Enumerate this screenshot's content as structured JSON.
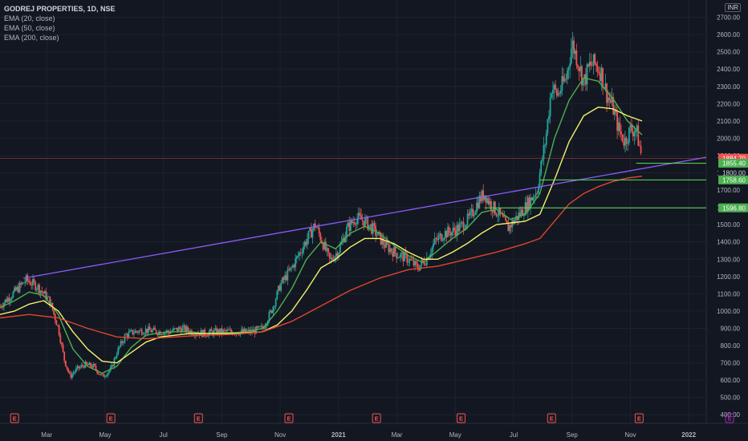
{
  "legend": {
    "title": "GODREJ PROPERTIES, 1D, NSE",
    "indicators": [
      "EMA (20, close)",
      "EMA (50, close)",
      "EMA (200, close)"
    ]
  },
  "currency": "INR",
  "colors": {
    "background": "#131722",
    "grid": "#1e222d",
    "up": "#26a69a",
    "down": "#ef5350",
    "ema20": "#4caf50",
    "ema50": "#f3f36a",
    "ema200": "#e0452b",
    "trendline": "#8a5cf6",
    "hline": "#5ee05e",
    "price_line": "#ef5350",
    "earnings": "#ef5350",
    "earnings_future": "#9c27b0"
  },
  "chart_data": {
    "type": "candlestick",
    "title": "GODREJ PROPERTIES, 1D, NSE",
    "ylim": [
      350,
      2800
    ],
    "y_ticks": [
      "400.00",
      "500.00",
      "600.00",
      "700.00",
      "800.00",
      "900.00",
      "1000.00",
      "1100.00",
      "1200.00",
      "1300.00",
      "1400.00",
      "1500.00",
      "1600.00",
      "1700.00",
      "1800.00",
      "1900.00",
      "2000.00",
      "2100.00",
      "2200.00",
      "2300.00",
      "2400.00",
      "2500.00",
      "2600.00",
      "2700.00"
    ],
    "x_ticks": [
      "Mar",
      "May",
      "Jul",
      "Sep",
      "Nov",
      "2021",
      "Mar",
      "May",
      "Jul",
      "Sep",
      "Nov",
      "2022"
    ],
    "x_tick_months": [
      1.6,
      3.6,
      5.6,
      7.6,
      9.6,
      11.6,
      13.6,
      15.6,
      17.6,
      19.6,
      21.6,
      23.6
    ],
    "x_range_months": [
      0,
      24.2
    ],
    "price_path": [
      [
        0,
        1030
      ],
      [
        0.5,
        1110
      ],
      [
        0.9,
        1180
      ],
      [
        1.3,
        1140
      ],
      [
        1.7,
        1060
      ],
      [
        2.0,
        900
      ],
      [
        2.2,
        720
      ],
      [
        2.4,
        620
      ],
      [
        2.6,
        660
      ],
      [
        2.9,
        690
      ],
      [
        3.2,
        680
      ],
      [
        3.5,
        620
      ],
      [
        3.8,
        660
      ],
      [
        4.0,
        760
      ],
      [
        4.3,
        860
      ],
      [
        4.6,
        880
      ],
      [
        5.0,
        890
      ],
      [
        5.4,
        880
      ],
      [
        5.8,
        880
      ],
      [
        6.2,
        900
      ],
      [
        6.6,
        880
      ],
      [
        7.0,
        870
      ],
      [
        7.4,
        880
      ],
      [
        7.8,
        880
      ],
      [
        8.2,
        880
      ],
      [
        8.6,
        880
      ],
      [
        9.0,
        900
      ],
      [
        9.3,
        1000
      ],
      [
        9.6,
        1150
      ],
      [
        10.0,
        1250
      ],
      [
        10.4,
        1380
      ],
      [
        10.8,
        1500
      ],
      [
        11.0,
        1420
      ],
      [
        11.3,
        1290
      ],
      [
        11.6,
        1350
      ],
      [
        11.9,
        1480
      ],
      [
        12.2,
        1540
      ],
      [
        12.5,
        1520
      ],
      [
        12.8,
        1470
      ],
      [
        13.2,
        1380
      ],
      [
        13.6,
        1330
      ],
      [
        14.0,
        1300
      ],
      [
        14.3,
        1250
      ],
      [
        14.6,
        1300
      ],
      [
        14.9,
        1400
      ],
      [
        15.2,
        1450
      ],
      [
        15.5,
        1460
      ],
      [
        15.8,
        1490
      ],
      [
        16.1,
        1540
      ],
      [
        16.4,
        1640
      ],
      [
        16.6,
        1680
      ],
      [
        16.8,
        1620
      ],
      [
        17.1,
        1560
      ],
      [
        17.4,
        1480
      ],
      [
        17.7,
        1540
      ],
      [
        18.0,
        1600
      ],
      [
        18.4,
        1700
      ],
      [
        18.7,
        2000
      ],
      [
        18.9,
        2300
      ],
      [
        19.1,
        2250
      ],
      [
        19.4,
        2350
      ],
      [
        19.6,
        2550
      ],
      [
        19.8,
        2450
      ],
      [
        20.0,
        2320
      ],
      [
        20.2,
        2420
      ],
      [
        20.4,
        2430
      ],
      [
        20.6,
        2380
      ],
      [
        20.8,
        2250
      ],
      [
        21.0,
        2180
      ],
      [
        21.2,
        2050
      ],
      [
        21.4,
        1980
      ],
      [
        21.6,
        2050
      ],
      [
        21.8,
        2050
      ],
      [
        22.0,
        1880
      ]
    ],
    "series": [
      {
        "name": "EMA (20, close)",
        "points": [
          [
            0,
            1020
          ],
          [
            0.5,
            1060
          ],
          [
            1.0,
            1110
          ],
          [
            1.5,
            1090
          ],
          [
            2.0,
            980
          ],
          [
            2.5,
            780
          ],
          [
            3.0,
            680
          ],
          [
            3.5,
            640
          ],
          [
            4.0,
            680
          ],
          [
            4.5,
            790
          ],
          [
            5.0,
            860
          ],
          [
            5.5,
            875
          ],
          [
            6.0,
            880
          ],
          [
            6.5,
            880
          ],
          [
            7.0,
            870
          ],
          [
            7.5,
            875
          ],
          [
            8.0,
            875
          ],
          [
            8.5,
            880
          ],
          [
            9.0,
            900
          ],
          [
            9.5,
            1000
          ],
          [
            10.0,
            1130
          ],
          [
            10.5,
            1300
          ],
          [
            11.0,
            1400
          ],
          [
            11.5,
            1360
          ],
          [
            12.0,
            1450
          ],
          [
            12.5,
            1490
          ],
          [
            13.0,
            1450
          ],
          [
            13.5,
            1380
          ],
          [
            14.0,
            1320
          ],
          [
            14.5,
            1280
          ],
          [
            15.0,
            1350
          ],
          [
            15.5,
            1420
          ],
          [
            16.0,
            1480
          ],
          [
            16.5,
            1570
          ],
          [
            17.0,
            1590
          ],
          [
            17.5,
            1530
          ],
          [
            18.0,
            1560
          ],
          [
            18.5,
            1680
          ],
          [
            19.0,
            2000
          ],
          [
            19.5,
            2220
          ],
          [
            20.0,
            2350
          ],
          [
            20.5,
            2330
          ],
          [
            21.0,
            2230
          ],
          [
            21.5,
            2100
          ],
          [
            22.0,
            2020
          ]
        ]
      },
      {
        "name": "EMA (50, close)",
        "points": [
          [
            0,
            980
          ],
          [
            0.5,
            1000
          ],
          [
            1.0,
            1040
          ],
          [
            1.5,
            1060
          ],
          [
            2.0,
            1000
          ],
          [
            2.5,
            880
          ],
          [
            3.0,
            780
          ],
          [
            3.5,
            710
          ],
          [
            4.0,
            700
          ],
          [
            4.5,
            760
          ],
          [
            5.0,
            820
          ],
          [
            5.5,
            850
          ],
          [
            6.0,
            860
          ],
          [
            6.5,
            870
          ],
          [
            7.0,
            870
          ],
          [
            7.5,
            870
          ],
          [
            8.0,
            870
          ],
          [
            8.5,
            875
          ],
          [
            9.0,
            880
          ],
          [
            9.5,
            920
          ],
          [
            10.0,
            1000
          ],
          [
            10.5,
            1120
          ],
          [
            11.0,
            1250
          ],
          [
            11.5,
            1300
          ],
          [
            12.0,
            1370
          ],
          [
            12.5,
            1420
          ],
          [
            13.0,
            1420
          ],
          [
            13.5,
            1390
          ],
          [
            14.0,
            1340
          ],
          [
            14.5,
            1300
          ],
          [
            15.0,
            1300
          ],
          [
            15.5,
            1340
          ],
          [
            16.0,
            1390
          ],
          [
            16.5,
            1450
          ],
          [
            17.0,
            1500
          ],
          [
            17.5,
            1510
          ],
          [
            18.0,
            1520
          ],
          [
            18.5,
            1560
          ],
          [
            19.0,
            1760
          ],
          [
            19.5,
            1980
          ],
          [
            20.0,
            2130
          ],
          [
            20.5,
            2180
          ],
          [
            21.0,
            2170
          ],
          [
            21.5,
            2130
          ],
          [
            22.0,
            2100
          ]
        ]
      },
      {
        "name": "EMA (200, close)",
        "points": [
          [
            0,
            960
          ],
          [
            1.0,
            980
          ],
          [
            2.0,
            960
          ],
          [
            3.0,
            900
          ],
          [
            4.0,
            850
          ],
          [
            5.0,
            840
          ],
          [
            6.0,
            850
          ],
          [
            7.0,
            860
          ],
          [
            8.0,
            865
          ],
          [
            9.0,
            880
          ],
          [
            10.0,
            940
          ],
          [
            11.0,
            1030
          ],
          [
            12.0,
            1120
          ],
          [
            13.0,
            1190
          ],
          [
            14.0,
            1240
          ],
          [
            15.0,
            1260
          ],
          [
            16.0,
            1300
          ],
          [
            17.0,
            1340
          ],
          [
            18.0,
            1390
          ],
          [
            18.5,
            1420
          ],
          [
            19.0,
            1520
          ],
          [
            19.5,
            1620
          ],
          [
            20.0,
            1680
          ],
          [
            20.5,
            1720
          ],
          [
            21.0,
            1750
          ],
          [
            21.5,
            1770
          ],
          [
            22.0,
            1780
          ]
        ]
      }
    ],
    "trendline": {
      "start": [
        0.8,
        1190
      ],
      "end": [
        24.2,
        1890
      ]
    },
    "horizontal_levels": [
      {
        "value": 1884.7,
        "label": "1884.70",
        "role": "last-price"
      },
      {
        "value": 1855.4,
        "label": "1855.40",
        "role": "level"
      },
      {
        "value": 1800.0,
        "label": "1800.00",
        "role": "level"
      },
      {
        "value": 1758.6,
        "label": "1758.60",
        "role": "level"
      },
      {
        "value": 1596.8,
        "label": "1596.80",
        "role": "level"
      }
    ],
    "earnings_months": [
      0.5,
      3.8,
      6.8,
      9.9,
      12.9,
      15.8,
      18.9,
      21.9
    ],
    "earnings_future_months": [
      25.0
    ],
    "earnings_label": "E",
    "grid": true
  }
}
